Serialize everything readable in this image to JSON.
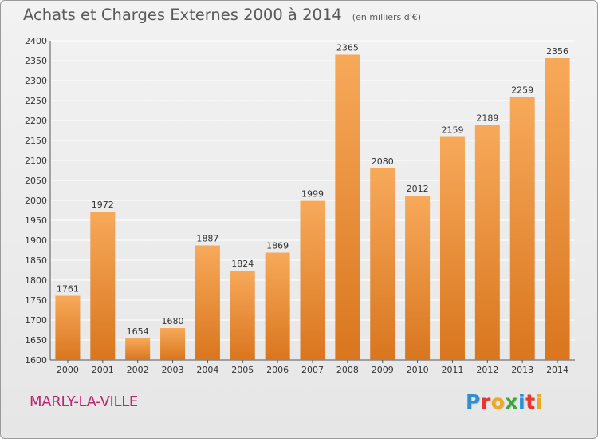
{
  "header": {
    "title": "Achats et Charges Externes 2000 à 2014",
    "unit": "(en milliers d'€)"
  },
  "footer": {
    "city": "MARLY-LA-VILLE",
    "brand_letters": [
      "P",
      "r",
      "o",
      "x",
      "i",
      "t",
      "i"
    ],
    "brand_colors": [
      "#2e8fd6",
      "#e8372e",
      "#f2a81d",
      "#3aa935",
      "#2e8fd6",
      "#e8372e",
      "#f2a81d"
    ]
  },
  "colors": {
    "bar_light": "#f7a95a",
    "bar_dark": "#d9761e",
    "grid": "#ffffff",
    "text": "#333333"
  },
  "chart_data": {
    "type": "bar",
    "title": "Achats et Charges Externes 2000 à 2014",
    "subtitle": "(en milliers d'€)",
    "categories": [
      "2000",
      "2001",
      "2002",
      "2003",
      "2004",
      "2005",
      "2006",
      "2007",
      "2008",
      "2009",
      "2010",
      "2011",
      "2012",
      "2013",
      "2014"
    ],
    "values": [
      1761,
      1972,
      1654,
      1680,
      1887,
      1824,
      1869,
      1999,
      2365,
      2080,
      2012,
      2159,
      2189,
      2259,
      2356
    ],
    "ylim": [
      1600,
      2400
    ],
    "yticks": [
      1600,
      1650,
      1700,
      1750,
      1800,
      1850,
      1900,
      1950,
      2000,
      2050,
      2100,
      2150,
      2200,
      2250,
      2300,
      2350,
      2400
    ],
    "grid": true,
    "xlabel": "",
    "ylabel": ""
  }
}
